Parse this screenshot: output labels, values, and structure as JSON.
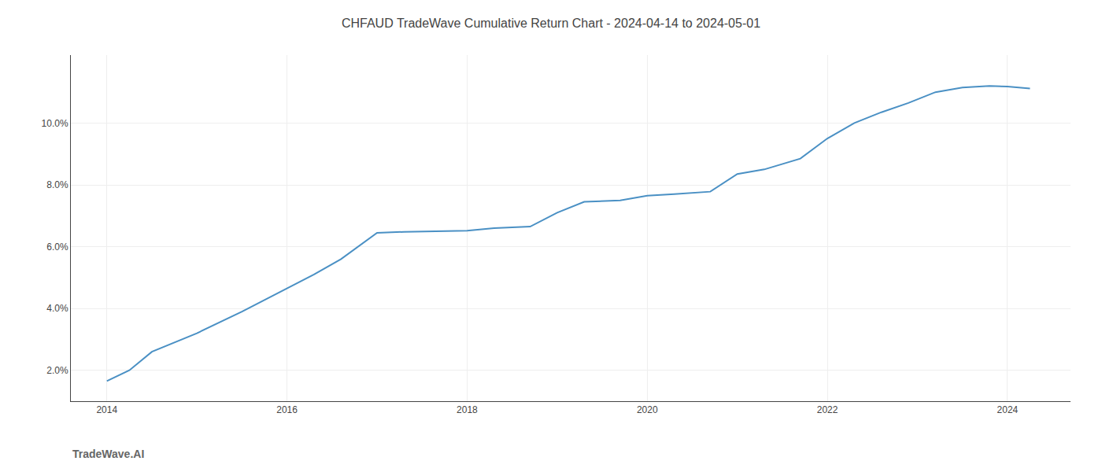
{
  "chart_data": {
    "type": "line",
    "title": "CHFAUD TradeWave Cumulative Return Chart - 2024-04-14 to 2024-05-01",
    "annotations": [
      "TradeWave.AI"
    ],
    "x": [
      2014.0,
      2014.25,
      2014.5,
      2015.0,
      2015.5,
      2016.0,
      2016.3,
      2016.6,
      2017.0,
      2017.3,
      2017.7,
      2018.0,
      2018.3,
      2018.7,
      2019.0,
      2019.3,
      2019.7,
      2020.0,
      2020.3,
      2020.7,
      2021.0,
      2021.3,
      2021.7,
      2022.0,
      2022.3,
      2022.6,
      2022.9,
      2023.2,
      2023.5,
      2023.8,
      2024.0,
      2024.25
    ],
    "values": [
      1.65,
      2.0,
      2.6,
      3.2,
      3.9,
      4.65,
      5.1,
      5.6,
      6.45,
      6.48,
      6.5,
      6.52,
      6.6,
      6.65,
      7.1,
      7.45,
      7.5,
      7.65,
      7.7,
      7.78,
      8.35,
      8.5,
      8.85,
      9.5,
      10.0,
      10.35,
      10.65,
      11.0,
      11.15,
      11.2,
      11.18,
      11.12
    ],
    "color": "#4a90c4",
    "xlim": [
      2013.6,
      2024.7
    ],
    "ylim": [
      1.0,
      12.2
    ],
    "xticks": [
      2014,
      2016,
      2018,
      2020,
      2022,
      2024
    ],
    "yticks": [
      {
        "value": 2.0,
        "label": "2.0%"
      },
      {
        "value": 4.0,
        "label": "4.0%"
      },
      {
        "value": 6.0,
        "label": "6.0%"
      },
      {
        "value": 8.0,
        "label": "8.0%"
      },
      {
        "value": 10.0,
        "label": "10.0%"
      }
    ],
    "grid": true
  }
}
